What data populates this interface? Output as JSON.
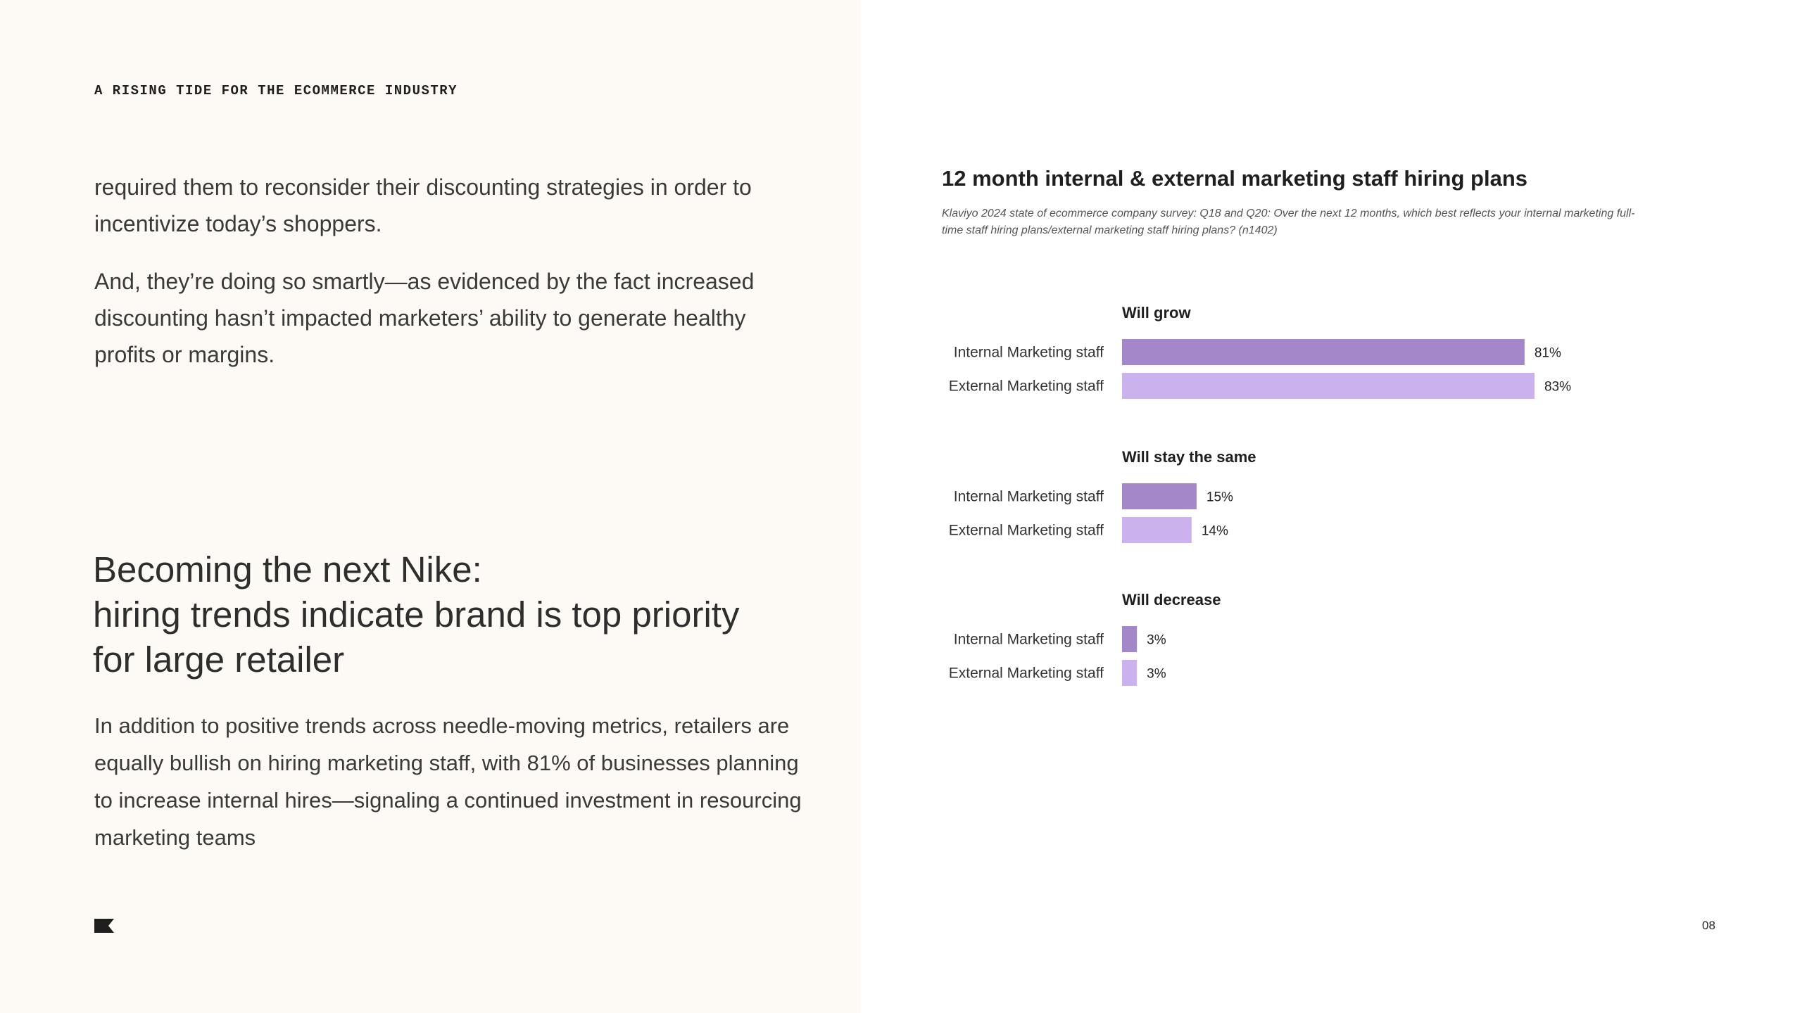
{
  "header": {
    "section_label": "A RISING TIDE FOR THE ECOMMERCE INDUSTRY"
  },
  "intro": {
    "paragraph_1": " required them to reconsider their discounting strategies in order to incentivize today’s shoppers.",
    "paragraph_2": "And, they’re doing so smartly—as evidenced by the fact increased discounting hasn’t impacted marketers’ ability to generate healthy profits or margins."
  },
  "section": {
    "headline_line_1": "Becoming the next Nike:",
    "headline_line_2": "hiring trends indicate brand is top priority",
    "headline_line_3": "for large retailer",
    "body": "In addition to positive trends across needle-moving metrics, retailers are equally bullish on hiring marketing staff, with 81% of businesses planning to increase internal hires—signaling a continued investment in resourcing marketing teams"
  },
  "logo_icon": "flag-logo-icon",
  "page_number": "08",
  "colors": {
    "internal": "#a487c8",
    "external": "#cbb2ee",
    "left_background": "#fdf9f4"
  },
  "chart_data": {
    "type": "bar",
    "orientation": "horizontal",
    "title": "12 month internal & external marketing staff hiring plans",
    "source": "Klaviyo 2024 state of ecommerce company survey: Q18 and Q20: Over the next 12 months, which best reflects your internal marketing full-time staff hiring plans/external marketing staff hiring plans? (n1402)",
    "groups": [
      {
        "label": "Will grow",
        "bars": [
          {
            "label": "Internal Marketing staff",
            "value": 81,
            "display": "81%"
          },
          {
            "label": "External Marketing staff",
            "value": 83,
            "display": "83%"
          }
        ]
      },
      {
        "label": "Will stay the same",
        "bars": [
          {
            "label": "Internal Marketing staff",
            "value": 15,
            "display": "15%"
          },
          {
            "label": "External Marketing staff",
            "value": 14,
            "display": "14%"
          }
        ]
      },
      {
        "label": "Will decrease",
        "bars": [
          {
            "label": "Internal Marketing staff",
            "value": 3,
            "display": "3%"
          },
          {
            "label": "External Marketing staff",
            "value": 3,
            "display": "3%"
          }
        ]
      }
    ],
    "xlim": [
      0,
      100
    ],
    "grid": false
  }
}
